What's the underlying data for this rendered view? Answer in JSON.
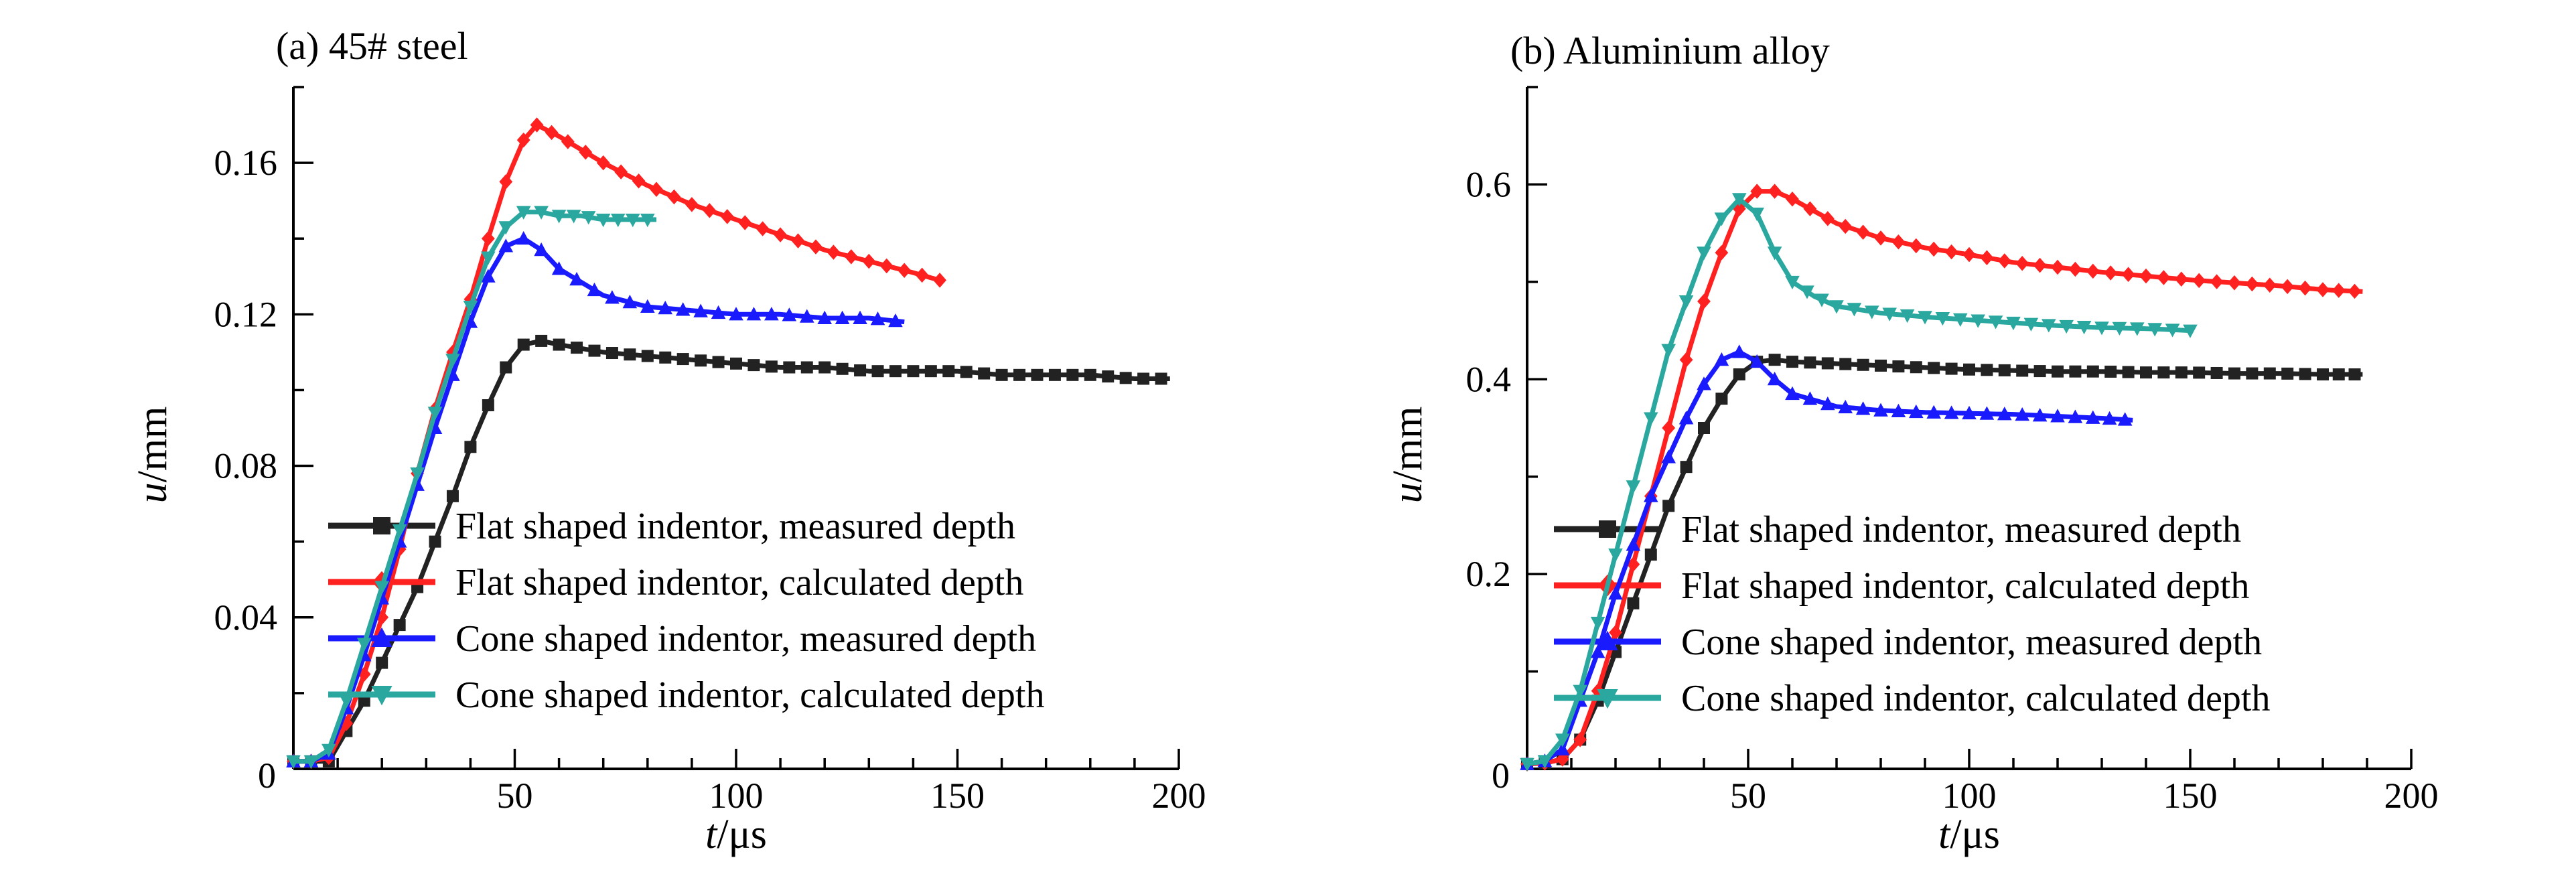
{
  "chart_data": [
    {
      "type": "line",
      "title": "(a)  45# steel",
      "xlabel_var": "t",
      "xlabel_unit": "/μs",
      "ylabel_var": "u",
      "ylabel_unit": "/mm",
      "xlim": [
        0,
        200
      ],
      "ylim": [
        0,
        0.18
      ],
      "x_ticks": [
        50,
        100,
        150,
        200
      ],
      "x_tick_labels": [
        "50",
        "100",
        "150",
        "200"
      ],
      "y_ticks": [
        0,
        0.04,
        0.08,
        0.12,
        0.16
      ],
      "y_tick_labels": [
        "0",
        "0.04",
        "0.08",
        "0.12",
        "0.16"
      ],
      "origin_label": "0",
      "grid": false,
      "legend_position": "bottom-right",
      "series": [
        {
          "name": "Flat shaped indentor, measured depth",
          "color": "#222222",
          "marker": "square",
          "points": [
            [
              0,
              0.002
            ],
            [
              4,
              0.002
            ],
            [
              8,
              0.002
            ],
            [
              12,
              0.01
            ],
            [
              16,
              0.018
            ],
            [
              20,
              0.028
            ],
            [
              24,
              0.038
            ],
            [
              28,
              0.048
            ],
            [
              32,
              0.06
            ],
            [
              36,
              0.072
            ],
            [
              40,
              0.085
            ],
            [
              44,
              0.096
            ],
            [
              48,
              0.106
            ],
            [
              52,
              0.112
            ],
            [
              56,
              0.113
            ],
            [
              60,
              0.112
            ],
            [
              70,
              0.11
            ],
            [
              80,
              0.109
            ],
            [
              90,
              0.108
            ],
            [
              100,
              0.107
            ],
            [
              110,
              0.106
            ],
            [
              120,
              0.106
            ],
            [
              130,
              0.105
            ],
            [
              140,
              0.105
            ],
            [
              150,
              0.105
            ],
            [
              160,
              0.104
            ],
            [
              170,
              0.104
            ],
            [
              180,
              0.104
            ],
            [
              190,
              0.103
            ],
            [
              198,
              0.103
            ]
          ]
        },
        {
          "name": "Flat shaped indentor, calculated depth",
          "color": "#ff2020",
          "marker": "diamond",
          "points": [
            [
              0,
              0.002
            ],
            [
              4,
              0.002
            ],
            [
              8,
              0.003
            ],
            [
              12,
              0.012
            ],
            [
              16,
              0.025
            ],
            [
              20,
              0.04
            ],
            [
              24,
              0.058
            ],
            [
              28,
              0.078
            ],
            [
              32,
              0.095
            ],
            [
              36,
              0.11
            ],
            [
              40,
              0.124
            ],
            [
              44,
              0.14
            ],
            [
              48,
              0.155
            ],
            [
              52,
              0.166
            ],
            [
              55,
              0.17
            ],
            [
              60,
              0.167
            ],
            [
              70,
              0.16
            ],
            [
              80,
              0.154
            ],
            [
              90,
              0.149
            ],
            [
              100,
              0.145
            ],
            [
              110,
              0.141
            ],
            [
              120,
              0.137
            ],
            [
              130,
              0.134
            ],
            [
              140,
              0.131
            ],
            [
              146,
              0.129
            ]
          ]
        },
        {
          "name": "Cone shaped indentor, measured depth",
          "color": "#1a1aff",
          "marker": "triangle-up",
          "points": [
            [
              0,
              0.002
            ],
            [
              4,
              0.002
            ],
            [
              8,
              0.004
            ],
            [
              12,
              0.016
            ],
            [
              16,
              0.03
            ],
            [
              20,
              0.045
            ],
            [
              24,
              0.06
            ],
            [
              28,
              0.075
            ],
            [
              32,
              0.09
            ],
            [
              36,
              0.104
            ],
            [
              40,
              0.118
            ],
            [
              44,
              0.13
            ],
            [
              48,
              0.138
            ],
            [
              52,
              0.14
            ],
            [
              56,
              0.137
            ],
            [
              60,
              0.132
            ],
            [
              70,
              0.125
            ],
            [
              80,
              0.122
            ],
            [
              90,
              0.121
            ],
            [
              100,
              0.12
            ],
            [
              110,
              0.12
            ],
            [
              120,
              0.119
            ],
            [
              130,
              0.119
            ],
            [
              138,
              0.118
            ]
          ]
        },
        {
          "name": "Cone shaped indentor, calculated depth",
          "color": "#2aa8a0",
          "marker": "triangle-down",
          "points": [
            [
              0,
              0.002
            ],
            [
              4,
              0.002
            ],
            [
              8,
              0.005
            ],
            [
              12,
              0.018
            ],
            [
              16,
              0.033
            ],
            [
              20,
              0.048
            ],
            [
              24,
              0.063
            ],
            [
              28,
              0.078
            ],
            [
              32,
              0.094
            ],
            [
              36,
              0.108
            ],
            [
              40,
              0.122
            ],
            [
              44,
              0.135
            ],
            [
              48,
              0.143
            ],
            [
              52,
              0.147
            ],
            [
              56,
              0.147
            ],
            [
              60,
              0.146
            ],
            [
              65,
              0.146
            ],
            [
              70,
              0.145
            ],
            [
              75,
              0.145
            ],
            [
              80,
              0.145
            ],
            [
              82,
              0.145
            ]
          ]
        }
      ]
    },
    {
      "type": "line",
      "title": "(b) Aluminium alloy",
      "xlabel_var": "t",
      "xlabel_unit": "/μs",
      "ylabel_var": "u",
      "ylabel_unit": "/mm",
      "xlim": [
        0,
        200
      ],
      "ylim": [
        0,
        0.7
      ],
      "x_ticks": [
        50,
        100,
        150,
        200
      ],
      "x_tick_labels": [
        "50",
        "100",
        "150",
        "200"
      ],
      "y_ticks": [
        0,
        0.2,
        0.4,
        0.6
      ],
      "y_tick_labels": [
        "0",
        "0.2",
        "0.4",
        "0.6"
      ],
      "origin_label": "0",
      "grid": false,
      "legend_position": "bottom-right",
      "series": [
        {
          "name": "Flat shaped indentor, measured depth",
          "color": "#222222",
          "marker": "square",
          "points": [
            [
              0,
              0.005
            ],
            [
              4,
              0.006
            ],
            [
              8,
              0.01
            ],
            [
              12,
              0.03
            ],
            [
              16,
              0.07
            ],
            [
              20,
              0.12
            ],
            [
              24,
              0.17
            ],
            [
              28,
              0.22
            ],
            [
              32,
              0.27
            ],
            [
              36,
              0.31
            ],
            [
              40,
              0.35
            ],
            [
              44,
              0.38
            ],
            [
              48,
              0.405
            ],
            [
              52,
              0.418
            ],
            [
              56,
              0.42
            ],
            [
              60,
              0.418
            ],
            [
              70,
              0.416
            ],
            [
              80,
              0.414
            ],
            [
              90,
              0.412
            ],
            [
              100,
              0.41
            ],
            [
              110,
              0.409
            ],
            [
              120,
              0.408
            ],
            [
              130,
              0.408
            ],
            [
              140,
              0.407
            ],
            [
              150,
              0.407
            ],
            [
              160,
              0.406
            ],
            [
              170,
              0.406
            ],
            [
              180,
              0.405
            ],
            [
              189,
              0.405
            ]
          ]
        },
        {
          "name": "Flat shaped indentor, calculated depth",
          "color": "#ff2020",
          "marker": "diamond",
          "points": [
            [
              0,
              0.005
            ],
            [
              4,
              0.006
            ],
            [
              8,
              0.01
            ],
            [
              12,
              0.03
            ],
            [
              16,
              0.08
            ],
            [
              20,
              0.14
            ],
            [
              24,
              0.21
            ],
            [
              28,
              0.28
            ],
            [
              32,
              0.35
            ],
            [
              36,
              0.42
            ],
            [
              40,
              0.48
            ],
            [
              44,
              0.53
            ],
            [
              48,
              0.575
            ],
            [
              52,
              0.593
            ],
            [
              56,
              0.593
            ],
            [
              60,
              0.585
            ],
            [
              70,
              0.56
            ],
            [
              80,
              0.545
            ],
            [
              90,
              0.535
            ],
            [
              100,
              0.528
            ],
            [
              110,
              0.52
            ],
            [
              120,
              0.515
            ],
            [
              130,
              0.51
            ],
            [
              140,
              0.506
            ],
            [
              150,
              0.502
            ],
            [
              160,
              0.499
            ],
            [
              170,
              0.496
            ],
            [
              180,
              0.492
            ],
            [
              189,
              0.49
            ]
          ]
        },
        {
          "name": "Cone shaped indentor, measured depth",
          "color": "#1a1aff",
          "marker": "triangle-up",
          "points": [
            [
              0,
              0.005
            ],
            [
              4,
              0.008
            ],
            [
              8,
              0.02
            ],
            [
              12,
              0.07
            ],
            [
              16,
              0.12
            ],
            [
              20,
              0.18
            ],
            [
              24,
              0.23
            ],
            [
              28,
              0.28
            ],
            [
              32,
              0.32
            ],
            [
              36,
              0.36
            ],
            [
              40,
              0.395
            ],
            [
              44,
              0.42
            ],
            [
              48,
              0.428
            ],
            [
              52,
              0.418
            ],
            [
              56,
              0.4
            ],
            [
              60,
              0.385
            ],
            [
              70,
              0.372
            ],
            [
              80,
              0.368
            ],
            [
              90,
              0.366
            ],
            [
              100,
              0.365
            ],
            [
              110,
              0.364
            ],
            [
              120,
              0.362
            ],
            [
              130,
              0.36
            ],
            [
              137,
              0.358
            ]
          ]
        },
        {
          "name": "Cone shaped indentor, calculated depth",
          "color": "#2aa8a0",
          "marker": "triangle-down",
          "points": [
            [
              0,
              0.005
            ],
            [
              4,
              0.008
            ],
            [
              8,
              0.03
            ],
            [
              12,
              0.08
            ],
            [
              16,
              0.15
            ],
            [
              20,
              0.22
            ],
            [
              24,
              0.29
            ],
            [
              28,
              0.36
            ],
            [
              32,
              0.43
            ],
            [
              36,
              0.48
            ],
            [
              40,
              0.53
            ],
            [
              44,
              0.565
            ],
            [
              48,
              0.585
            ],
            [
              52,
              0.57
            ],
            [
              56,
              0.53
            ],
            [
              60,
              0.5
            ],
            [
              65,
              0.485
            ],
            [
              70,
              0.475
            ],
            [
              80,
              0.468
            ],
            [
              90,
              0.464
            ],
            [
              100,
              0.461
            ],
            [
              110,
              0.458
            ],
            [
              120,
              0.455
            ],
            [
              130,
              0.453
            ],
            [
              140,
              0.452
            ],
            [
              150,
              0.45
            ]
          ]
        }
      ]
    }
  ]
}
